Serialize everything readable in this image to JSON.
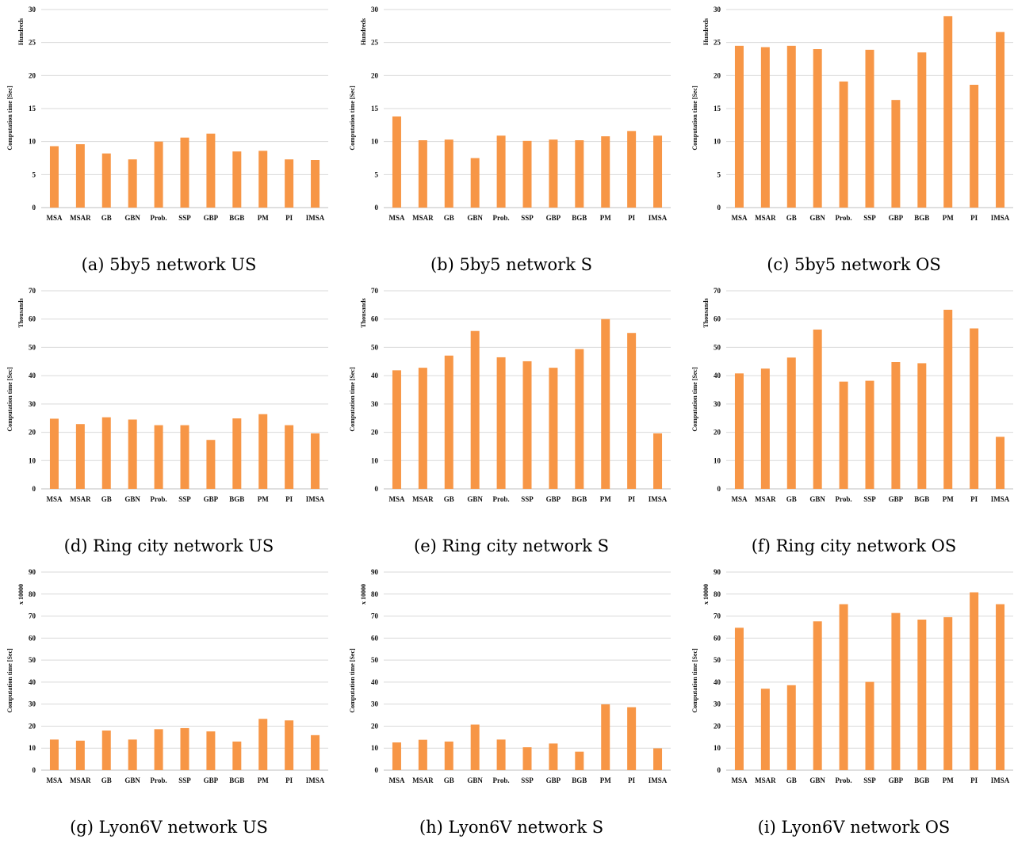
{
  "colors": {
    "bar": "#f79646",
    "grid": "#d9d9d9"
  },
  "chart_data": [
    {
      "type": "bar",
      "caption": "(a) 5by5 network US",
      "unit_label": "Hundreds",
      "ylabel": "Computation time [Sec]",
      "ylim": [
        0,
        30
      ],
      "ytick_step": 5,
      "yticks": [
        "0",
        "5",
        "10",
        "15",
        "20",
        "25",
        "30"
      ],
      "categories": [
        "MSA",
        "MSAR",
        "GB",
        "GBN",
        "Prob.",
        "SSP",
        "GBP",
        "BGB",
        "PM",
        "PI",
        "IMSA"
      ],
      "values": [
        9.3,
        9.6,
        8.2,
        7.3,
        10.0,
        10.6,
        11.2,
        8.5,
        8.6,
        7.3,
        7.2
      ],
      "grid": true
    },
    {
      "type": "bar",
      "caption": "(b) 5by5 network S",
      "unit_label": "Hundreds",
      "ylabel": "Computation time [Sec]",
      "ylim": [
        0,
        30
      ],
      "ytick_step": 5,
      "yticks": [
        "0",
        "5",
        "10",
        "15",
        "20",
        "25",
        "30"
      ],
      "categories": [
        "MSA",
        "MSAR",
        "GB",
        "GBN",
        "Prob.",
        "SSP",
        "GBP",
        "BGB",
        "PM",
        "PI",
        "IMSA"
      ],
      "values": [
        13.8,
        10.2,
        10.3,
        7.5,
        10.9,
        10.1,
        10.3,
        10.2,
        10.8,
        11.6,
        10.9
      ],
      "grid": true
    },
    {
      "type": "bar",
      "caption": "(c) 5by5 network OS",
      "unit_label": "Hundreds",
      "ylabel": "Computation time [Sec]",
      "ylim": [
        0,
        30
      ],
      "ytick_step": 5,
      "yticks": [
        "0",
        "5",
        "10",
        "15",
        "20",
        "25",
        "30"
      ],
      "categories": [
        "MSA",
        "MSAR",
        "GB",
        "GBN",
        "Prob.",
        "SSP",
        "GBP",
        "BGB",
        "PM",
        "PI",
        "IMSA"
      ],
      "values": [
        24.5,
        24.3,
        24.5,
        24.0,
        19.1,
        23.9,
        16.3,
        23.5,
        29.0,
        18.6,
        26.6
      ],
      "grid": true
    },
    {
      "type": "bar",
      "caption": "(d) Ring city network US",
      "unit_label": "Thousands",
      "ylabel": "Computation time [Sec]",
      "ylim": [
        0,
        70
      ],
      "ytick_step": 10,
      "yticks": [
        "0",
        "10",
        "20",
        "30",
        "40",
        "50",
        "60",
        "70"
      ],
      "categories": [
        "MSA",
        "MSAR",
        "GB",
        "GBN",
        "Prob.",
        "SSP",
        "GBP",
        "BGB",
        "PM",
        "PI",
        "IMSA"
      ],
      "values": [
        24.8,
        22.9,
        25.3,
        24.5,
        22.5,
        22.5,
        17.3,
        24.9,
        26.4,
        22.5,
        19.6
      ],
      "grid": true
    },
    {
      "type": "bar",
      "caption": "(e) Ring city network S",
      "unit_label": "Thousands",
      "ylabel": "Computation time [Sec]",
      "ylim": [
        0,
        70
      ],
      "ytick_step": 10,
      "yticks": [
        "0",
        "10",
        "20",
        "30",
        "40",
        "50",
        "60",
        "70"
      ],
      "categories": [
        "MSA",
        "MSAR",
        "GB",
        "GBN",
        "Prob.",
        "SSP",
        "GBP",
        "BGB",
        "PM",
        "PI",
        "IMSA"
      ],
      "values": [
        41.9,
        42.8,
        47.1,
        55.8,
        46.5,
        45.1,
        42.8,
        49.4,
        60.0,
        55.1,
        19.6
      ],
      "grid": true
    },
    {
      "type": "bar",
      "caption": "(f) Ring city network OS",
      "unit_label": "Thousands",
      "ylabel": "Computation time [Sec]",
      "ylim": [
        0,
        70
      ],
      "ytick_step": 10,
      "yticks": [
        "0",
        "10",
        "20",
        "30",
        "40",
        "50",
        "60",
        "70"
      ],
      "categories": [
        "MSA",
        "MSAR",
        "GB",
        "GBN",
        "Prob.",
        "SSP",
        "GBP",
        "BGB",
        "PM",
        "PI",
        "IMSA"
      ],
      "values": [
        40.8,
        42.5,
        46.4,
        56.3,
        37.9,
        38.2,
        44.8,
        44.4,
        63.3,
        56.7,
        18.4
      ],
      "grid": true
    },
    {
      "type": "bar",
      "caption": "(g) Lyon6V network US",
      "unit_label": "x 10000",
      "ylabel": "Computation time [Sec]",
      "ylim": [
        0,
        90
      ],
      "ytick_step": 10,
      "yticks": [
        "0",
        "10",
        "20",
        "30",
        "40",
        "50",
        "60",
        "70",
        "80",
        "90"
      ],
      "categories": [
        "MSA",
        "MSAR",
        "GB",
        "GBN",
        "Prob.",
        "SSP",
        "GBP",
        "BGB",
        "PM",
        "PI",
        "IMSA"
      ],
      "values": [
        13.9,
        13.4,
        18.0,
        13.9,
        18.6,
        19.1,
        17.6,
        13.0,
        23.3,
        22.6,
        15.9
      ],
      "grid": true
    },
    {
      "type": "bar",
      "caption": "(h) Lyon6V network S",
      "unit_label": "x 10000",
      "ylabel": "Computation time [Sec]",
      "ylim": [
        0,
        90
      ],
      "ytick_step": 10,
      "yticks": [
        "0",
        "10",
        "20",
        "30",
        "40",
        "50",
        "60",
        "70",
        "80",
        "90"
      ],
      "categories": [
        "MSA",
        "MSAR",
        "GB",
        "GBN",
        "Prob.",
        "SSP",
        "GBP",
        "BGB",
        "PM",
        "PI",
        "IMSA"
      ],
      "values": [
        12.6,
        13.8,
        13.0,
        20.7,
        13.9,
        10.4,
        12.1,
        8.4,
        29.9,
        28.6,
        9.9
      ],
      "grid": true
    },
    {
      "type": "bar",
      "caption": "(i) Lyon6V network OS",
      "unit_label": "x 10000",
      "ylabel": "Computation time [Sec]",
      "ylim": [
        0,
        90
      ],
      "ytick_step": 10,
      "yticks": [
        "0",
        "10",
        "20",
        "30",
        "40",
        "50",
        "60",
        "70",
        "80",
        "90"
      ],
      "categories": [
        "MSA",
        "MSAR",
        "GB",
        "GBN",
        "Prob.",
        "SSP",
        "GBP",
        "BGB",
        "PM",
        "PI",
        "IMSA"
      ],
      "values": [
        64.7,
        37.0,
        38.6,
        67.6,
        75.4,
        40.1,
        71.4,
        68.4,
        69.5,
        80.8,
        75.4
      ],
      "grid": true
    }
  ]
}
